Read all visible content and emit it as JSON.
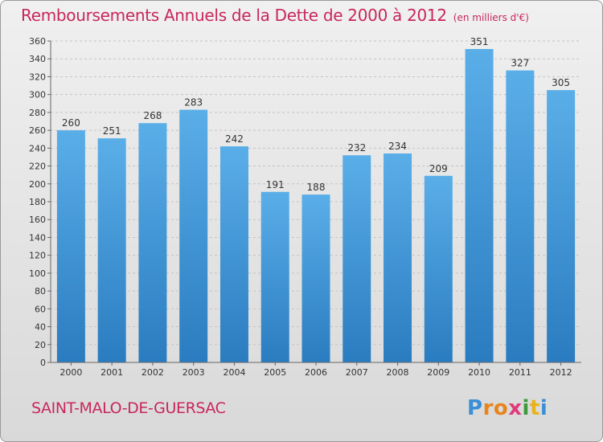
{
  "title": "Remboursements Annuels de la Dette de 2000 à 2012",
  "unit": "(en milliers d'€)",
  "commune": "SAINT-MALO-DE-GUERSAC",
  "brand": {
    "letters": [
      "P",
      "r",
      "o",
      "x",
      "i",
      "t",
      "i"
    ],
    "colors": [
      "#3b8fd6",
      "#e8841c",
      "#e8841c",
      "#e03a7a",
      "#3c9a3c",
      "#e8b21c",
      "#3b8fd6"
    ]
  },
  "colors": {
    "bar_top": "#5aaee8",
    "bar_bottom": "#2a7cc0",
    "title": "#c8275a"
  },
  "chart_data": {
    "type": "bar",
    "categories": [
      "2000",
      "2001",
      "2002",
      "2003",
      "2004",
      "2005",
      "2006",
      "2007",
      "2008",
      "2009",
      "2010",
      "2011",
      "2012"
    ],
    "values": [
      260,
      251,
      268,
      283,
      242,
      191,
      188,
      232,
      234,
      209,
      351,
      327,
      305
    ],
    "ylim": [
      0,
      360
    ],
    "ytick_step": 20,
    "grid": true
  }
}
